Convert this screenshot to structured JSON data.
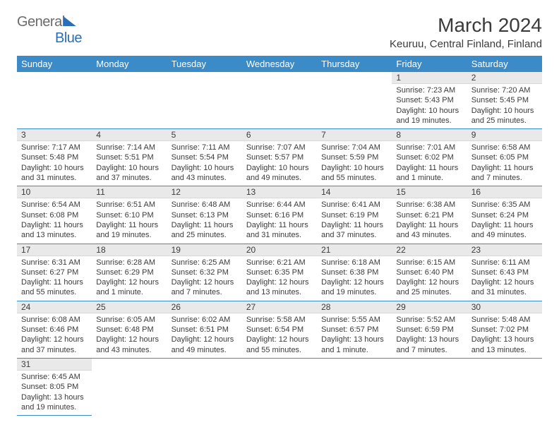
{
  "brand": {
    "text_gray": "General",
    "text_blue": "Blue"
  },
  "title": "March 2024",
  "location": "Keuruu, Central Finland, Finland",
  "headers": [
    "Sunday",
    "Monday",
    "Tuesday",
    "Wednesday",
    "Thursday",
    "Friday",
    "Saturday"
  ],
  "colors": {
    "header_bg": "#3b8bc9",
    "header_text": "#ffffff",
    "daynum_bg": "#e9e9e9",
    "border": "#3b8bc9",
    "text": "#3b3b3b",
    "brand_blue": "#2a6fb5",
    "brand_gray": "#6b6b6b"
  },
  "first_weekday": 5,
  "days": [
    {
      "n": 1,
      "sunrise": "7:23 AM",
      "sunset": "5:43 PM",
      "daylight": "10 hours and 19 minutes."
    },
    {
      "n": 2,
      "sunrise": "7:20 AM",
      "sunset": "5:45 PM",
      "daylight": "10 hours and 25 minutes."
    },
    {
      "n": 3,
      "sunrise": "7:17 AM",
      "sunset": "5:48 PM",
      "daylight": "10 hours and 31 minutes."
    },
    {
      "n": 4,
      "sunrise": "7:14 AM",
      "sunset": "5:51 PM",
      "daylight": "10 hours and 37 minutes."
    },
    {
      "n": 5,
      "sunrise": "7:11 AM",
      "sunset": "5:54 PM",
      "daylight": "10 hours and 43 minutes."
    },
    {
      "n": 6,
      "sunrise": "7:07 AM",
      "sunset": "5:57 PM",
      "daylight": "10 hours and 49 minutes."
    },
    {
      "n": 7,
      "sunrise": "7:04 AM",
      "sunset": "5:59 PM",
      "daylight": "10 hours and 55 minutes."
    },
    {
      "n": 8,
      "sunrise": "7:01 AM",
      "sunset": "6:02 PM",
      "daylight": "11 hours and 1 minute."
    },
    {
      "n": 9,
      "sunrise": "6:58 AM",
      "sunset": "6:05 PM",
      "daylight": "11 hours and 7 minutes."
    },
    {
      "n": 10,
      "sunrise": "6:54 AM",
      "sunset": "6:08 PM",
      "daylight": "11 hours and 13 minutes."
    },
    {
      "n": 11,
      "sunrise": "6:51 AM",
      "sunset": "6:10 PM",
      "daylight": "11 hours and 19 minutes."
    },
    {
      "n": 12,
      "sunrise": "6:48 AM",
      "sunset": "6:13 PM",
      "daylight": "11 hours and 25 minutes."
    },
    {
      "n": 13,
      "sunrise": "6:44 AM",
      "sunset": "6:16 PM",
      "daylight": "11 hours and 31 minutes."
    },
    {
      "n": 14,
      "sunrise": "6:41 AM",
      "sunset": "6:19 PM",
      "daylight": "11 hours and 37 minutes."
    },
    {
      "n": 15,
      "sunrise": "6:38 AM",
      "sunset": "6:21 PM",
      "daylight": "11 hours and 43 minutes."
    },
    {
      "n": 16,
      "sunrise": "6:35 AM",
      "sunset": "6:24 PM",
      "daylight": "11 hours and 49 minutes."
    },
    {
      "n": 17,
      "sunrise": "6:31 AM",
      "sunset": "6:27 PM",
      "daylight": "11 hours and 55 minutes."
    },
    {
      "n": 18,
      "sunrise": "6:28 AM",
      "sunset": "6:29 PM",
      "daylight": "12 hours and 1 minute."
    },
    {
      "n": 19,
      "sunrise": "6:25 AM",
      "sunset": "6:32 PM",
      "daylight": "12 hours and 7 minutes."
    },
    {
      "n": 20,
      "sunrise": "6:21 AM",
      "sunset": "6:35 PM",
      "daylight": "12 hours and 13 minutes."
    },
    {
      "n": 21,
      "sunrise": "6:18 AM",
      "sunset": "6:38 PM",
      "daylight": "12 hours and 19 minutes."
    },
    {
      "n": 22,
      "sunrise": "6:15 AM",
      "sunset": "6:40 PM",
      "daylight": "12 hours and 25 minutes."
    },
    {
      "n": 23,
      "sunrise": "6:11 AM",
      "sunset": "6:43 PM",
      "daylight": "12 hours and 31 minutes."
    },
    {
      "n": 24,
      "sunrise": "6:08 AM",
      "sunset": "6:46 PM",
      "daylight": "12 hours and 37 minutes."
    },
    {
      "n": 25,
      "sunrise": "6:05 AM",
      "sunset": "6:48 PM",
      "daylight": "12 hours and 43 minutes."
    },
    {
      "n": 26,
      "sunrise": "6:02 AM",
      "sunset": "6:51 PM",
      "daylight": "12 hours and 49 minutes."
    },
    {
      "n": 27,
      "sunrise": "5:58 AM",
      "sunset": "6:54 PM",
      "daylight": "12 hours and 55 minutes."
    },
    {
      "n": 28,
      "sunrise": "5:55 AM",
      "sunset": "6:57 PM",
      "daylight": "13 hours and 1 minute."
    },
    {
      "n": 29,
      "sunrise": "5:52 AM",
      "sunset": "6:59 PM",
      "daylight": "13 hours and 7 minutes."
    },
    {
      "n": 30,
      "sunrise": "5:48 AM",
      "sunset": "7:02 PM",
      "daylight": "13 hours and 13 minutes."
    },
    {
      "n": 31,
      "sunrise": "6:45 AM",
      "sunset": "8:05 PM",
      "daylight": "13 hours and 19 minutes."
    }
  ],
  "labels": {
    "sunrise": "Sunrise:",
    "sunset": "Sunset:",
    "daylight": "Daylight:"
  }
}
